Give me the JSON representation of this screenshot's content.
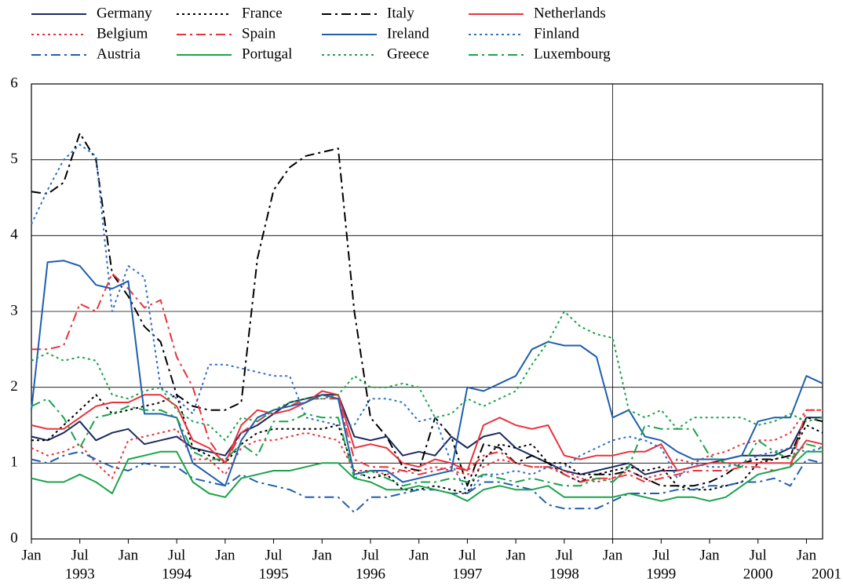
{
  "chart_data": {
    "type": "line",
    "x": [
      "1993-01",
      "1993-03",
      "1993-05",
      "1993-07",
      "1993-09",
      "1993-11",
      "1994-01",
      "1994-03",
      "1994-05",
      "1994-07",
      "1994-09",
      "1994-11",
      "1995-01",
      "1995-03",
      "1995-05",
      "1995-07",
      "1995-09",
      "1995-11",
      "1996-01",
      "1996-03",
      "1996-05",
      "1996-07",
      "1996-09",
      "1996-11",
      "1997-01",
      "1997-03",
      "1997-05",
      "1997-07",
      "1997-09",
      "1997-11",
      "1998-01",
      "1998-03",
      "1998-05",
      "1998-07",
      "1998-09",
      "1998-11",
      "1999-01",
      "1999-03",
      "1999-05",
      "1999-07",
      "1999-09",
      "1999-11",
      "2000-01",
      "2000-03",
      "2000-05",
      "2000-07",
      "2000-09",
      "2000-11",
      "2001-01",
      "2001-03"
    ],
    "xlim": [
      "1993-01",
      "2001-03"
    ],
    "xticks": [
      {
        "value": "1993-01",
        "label": "Jan"
      },
      {
        "value": "1993-07",
        "label": "Jul"
      },
      {
        "value": "1994-01",
        "label": "Jan"
      },
      {
        "value": "1994-07",
        "label": "Jul"
      },
      {
        "value": "1995-01",
        "label": "Jan"
      },
      {
        "value": "1995-07",
        "label": "Jul"
      },
      {
        "value": "1996-01",
        "label": "Jan"
      },
      {
        "value": "1996-07",
        "label": "Jul"
      },
      {
        "value": "1997-01",
        "label": "Jan"
      },
      {
        "value": "1997-07",
        "label": "Jul"
      },
      {
        "value": "1998-01",
        "label": "Jan"
      },
      {
        "value": "1998-07",
        "label": "Jul"
      },
      {
        "value": "1999-01",
        "label": "Jan"
      },
      {
        "value": "1999-07",
        "label": "Jul"
      },
      {
        "value": "2000-01",
        "label": "Jan"
      },
      {
        "value": "2000-07",
        "label": "Jul"
      },
      {
        "value": "2001-01",
        "label": "Jan"
      }
    ],
    "year_labels": [
      "1993",
      "1994",
      "1995",
      "1996",
      "1997",
      "1998",
      "1999",
      "2000",
      "2001"
    ],
    "vline": "1999-01",
    "ylim": [
      0,
      6
    ],
    "yticks": [
      0,
      1,
      2,
      3,
      4,
      5,
      6
    ],
    "grid": true,
    "series": [
      {
        "name": "Germany",
        "color": "#1c2a5e",
        "dash": "solid",
        "values": [
          1.35,
          1.3,
          1.4,
          1.55,
          1.3,
          1.4,
          1.45,
          1.25,
          1.3,
          1.35,
          1.2,
          1.15,
          1.1,
          1.4,
          1.5,
          1.65,
          1.8,
          1.85,
          1.9,
          1.9,
          1.35,
          1.3,
          1.35,
          1.1,
          1.15,
          1.1,
          1.35,
          1.2,
          1.35,
          1.4,
          1.2,
          1.1,
          1.0,
          0.9,
          0.85,
          0.9,
          0.95,
          1.0,
          0.85,
          0.9,
          0.9,
          0.95,
          1.0,
          1.05,
          1.1,
          1.1,
          1.1,
          1.2,
          1.6,
          1.6
        ]
      },
      {
        "name": "France",
        "color": "#000000",
        "dash": "dotted",
        "values": [
          1.3,
          1.3,
          1.5,
          1.7,
          1.9,
          1.65,
          1.7,
          1.75,
          1.8,
          1.9,
          1.2,
          1.1,
          1.0,
          1.25,
          1.4,
          1.45,
          1.45,
          1.45,
          1.45,
          1.5,
          0.9,
          0.8,
          0.85,
          0.65,
          0.65,
          0.7,
          0.65,
          0.6,
          1.05,
          1.25,
          1.2,
          1.25,
          1.0,
          1.0,
          0.85,
          0.85,
          0.9,
          0.95,
          0.9,
          0.95,
          0.7,
          0.65,
          0.65,
          0.7,
          0.75,
          1.0,
          1.05,
          1.1,
          1.5,
          1.4
        ]
      },
      {
        "name": "Italy",
        "color": "#000000",
        "dash": "dashdot",
        "values": [
          4.58,
          4.55,
          4.7,
          5.35,
          5.0,
          3.5,
          3.2,
          2.8,
          2.6,
          1.9,
          1.75,
          1.7,
          1.7,
          1.8,
          3.7,
          4.6,
          4.9,
          5.05,
          5.1,
          5.15,
          3.0,
          1.6,
          1.35,
          0.95,
          0.9,
          1.6,
          1.35,
          0.7,
          1.25,
          1.2,
          1.0,
          1.1,
          1.0,
          0.85,
          0.75,
          0.85,
          0.85,
          0.9,
          0.8,
          0.7,
          0.7,
          0.7,
          0.75,
          0.85,
          1.0,
          1.05,
          1.05,
          1.1,
          1.6,
          1.55
        ]
      },
      {
        "name": "Netherlands",
        "color": "#e8333c",
        "dash": "solid",
        "values": [
          1.5,
          1.45,
          1.45,
          1.6,
          1.75,
          1.8,
          1.8,
          1.9,
          1.9,
          1.75,
          1.3,
          1.2,
          1.0,
          1.5,
          1.7,
          1.65,
          1.7,
          1.8,
          1.95,
          1.9,
          1.2,
          1.25,
          1.2,
          1.0,
          0.95,
          1.05,
          1.0,
          0.9,
          1.5,
          1.6,
          1.5,
          1.45,
          1.5,
          1.1,
          1.05,
          1.1,
          1.1,
          1.15,
          1.15,
          1.25,
          0.9,
          0.95,
          1.0,
          1.0,
          1.0,
          1.0,
          1.0,
          1.0,
          1.3,
          1.25
        ]
      },
      {
        "name": "Belgium",
        "color": "#e8333c",
        "dash": "dotted",
        "values": [
          1.2,
          1.1,
          1.15,
          1.25,
          1.0,
          0.8,
          1.3,
          1.35,
          1.4,
          1.45,
          1.05,
          1.05,
          0.85,
          1.2,
          1.3,
          1.3,
          1.35,
          1.4,
          1.35,
          1.3,
          0.9,
          0.9,
          0.85,
          0.9,
          0.9,
          0.95,
          0.9,
          0.85,
          0.95,
          1.05,
          1.0,
          0.95,
          0.95,
          0.9,
          0.8,
          0.75,
          0.8,
          0.9,
          0.8,
          0.85,
          1.05,
          1.0,
          1.1,
          1.15,
          1.25,
          1.3,
          1.3,
          1.4,
          1.7,
          1.7
        ]
      },
      {
        "name": "Spain",
        "color": "#e8333c",
        "dash": "dashdot",
        "values": [
          2.5,
          2.5,
          2.55,
          3.1,
          3.0,
          3.5,
          3.3,
          3.05,
          3.15,
          2.4,
          2.0,
          1.3,
          1.0,
          1.4,
          1.55,
          1.7,
          1.75,
          1.85,
          1.85,
          1.85,
          1.05,
          0.95,
          0.95,
          0.9,
          0.85,
          0.9,
          0.95,
          0.9,
          1.1,
          1.15,
          1.0,
          0.95,
          0.95,
          0.85,
          0.75,
          0.8,
          0.8,
          0.85,
          0.75,
          0.8,
          0.85,
          0.9,
          0.9,
          0.9,
          0.95,
          0.95,
          0.9,
          0.95,
          1.7,
          1.7
        ]
      },
      {
        "name": "Ireland",
        "color": "#1f5fae",
        "dash": "solid",
        "values": [
          1.7,
          3.65,
          3.67,
          3.6,
          3.35,
          3.3,
          3.4,
          1.65,
          1.65,
          1.6,
          1.0,
          0.85,
          0.7,
          1.3,
          1.6,
          1.7,
          1.75,
          1.8,
          1.9,
          1.85,
          0.85,
          0.9,
          0.9,
          0.75,
          0.8,
          0.85,
          0.9,
          2.0,
          1.95,
          2.05,
          2.15,
          2.5,
          2.6,
          2.55,
          2.55,
          2.4,
          1.6,
          1.7,
          1.35,
          1.3,
          1.15,
          1.05,
          1.05,
          1.05,
          1.1,
          1.55,
          1.6,
          1.6,
          2.15,
          2.05
        ]
      },
      {
        "name": "Finland",
        "color": "#2f6fc8",
        "dash": "dotted",
        "values": [
          4.15,
          4.6,
          5.0,
          5.2,
          5.05,
          3.0,
          3.6,
          3.45,
          2.0,
          1.85,
          1.65,
          2.3,
          2.3,
          2.25,
          2.2,
          2.15,
          2.15,
          1.6,
          1.55,
          1.5,
          1.5,
          1.85,
          1.85,
          1.8,
          1.55,
          1.6,
          1.0,
          0.6,
          0.85,
          0.85,
          0.9,
          0.85,
          0.95,
          0.95,
          1.1,
          1.2,
          1.3,
          1.35,
          1.3,
          1.2,
          0.8,
          1.0,
          0.95,
          0.95,
          1.0,
          1.1,
          1.15,
          1.2,
          1.15,
          1.2
        ]
      },
      {
        "name": "Austria",
        "color": "#1f5fae",
        "dash": "dashdot",
        "values": [
          1.05,
          1.0,
          1.1,
          1.15,
          1.05,
          0.95,
          0.9,
          1.0,
          0.95,
          0.95,
          0.8,
          0.75,
          0.7,
          0.85,
          0.75,
          0.7,
          0.65,
          0.55,
          0.55,
          0.55,
          0.35,
          0.55,
          0.55,
          0.6,
          0.65,
          0.65,
          0.6,
          0.6,
          0.75,
          0.75,
          0.7,
          0.65,
          0.45,
          0.4,
          0.4,
          0.4,
          0.5,
          0.6,
          0.6,
          0.6,
          0.65,
          0.65,
          0.7,
          0.7,
          0.75,
          0.75,
          0.8,
          0.7,
          1.05,
          1.0
        ]
      },
      {
        "name": "Portugal",
        "color": "#1aa34a",
        "dash": "solid",
        "values": [
          0.8,
          0.75,
          0.75,
          0.85,
          0.75,
          0.6,
          1.05,
          1.1,
          1.15,
          1.15,
          0.75,
          0.6,
          0.55,
          0.8,
          0.85,
          0.9,
          0.9,
          0.95,
          1.0,
          1.0,
          0.8,
          0.75,
          0.65,
          0.65,
          0.7,
          0.65,
          0.6,
          0.5,
          0.65,
          0.7,
          0.65,
          0.65,
          0.7,
          0.55,
          0.55,
          0.55,
          0.55,
          0.6,
          0.55,
          0.5,
          0.55,
          0.55,
          0.5,
          0.55,
          0.7,
          0.85,
          0.9,
          0.95,
          1.15,
          1.15
        ]
      },
      {
        "name": "Greece",
        "color": "#1aa34a",
        "dash": "dotted",
        "values": [
          2.35,
          2.45,
          2.35,
          2.4,
          2.35,
          1.9,
          1.85,
          1.95,
          2.0,
          1.7,
          1.55,
          1.5,
          1.3,
          1.6,
          1.55,
          1.7,
          1.8,
          1.85,
          1.85,
          1.9,
          2.15,
          2.0,
          2.0,
          2.05,
          2.0,
          1.6,
          1.65,
          1.85,
          1.75,
          1.85,
          1.95,
          2.3,
          2.6,
          3.0,
          2.8,
          2.7,
          2.65,
          1.7,
          1.6,
          1.7,
          1.45,
          1.6,
          1.6,
          1.6,
          1.6,
          1.5,
          1.55,
          1.65,
          1.55,
          1.6
        ]
      },
      {
        "name": "Luxembourg",
        "color": "#1aa34a",
        "dash": "dashdot",
        "values": [
          1.75,
          1.85,
          1.6,
          1.2,
          1.6,
          1.65,
          1.75,
          1.7,
          1.7,
          1.6,
          1.15,
          1.05,
          1.05,
          1.25,
          1.1,
          1.55,
          1.55,
          1.65,
          1.6,
          1.6,
          0.8,
          0.9,
          0.8,
          0.7,
          0.75,
          0.75,
          0.8,
          0.75,
          0.85,
          0.8,
          0.75,
          0.8,
          0.75,
          0.7,
          0.7,
          0.8,
          0.75,
          0.95,
          1.5,
          1.45,
          1.45,
          1.45,
          1.1,
          1.0,
          0.95,
          1.3,
          1.15,
          1.05,
          1.25,
          1.2
        ]
      }
    ]
  }
}
